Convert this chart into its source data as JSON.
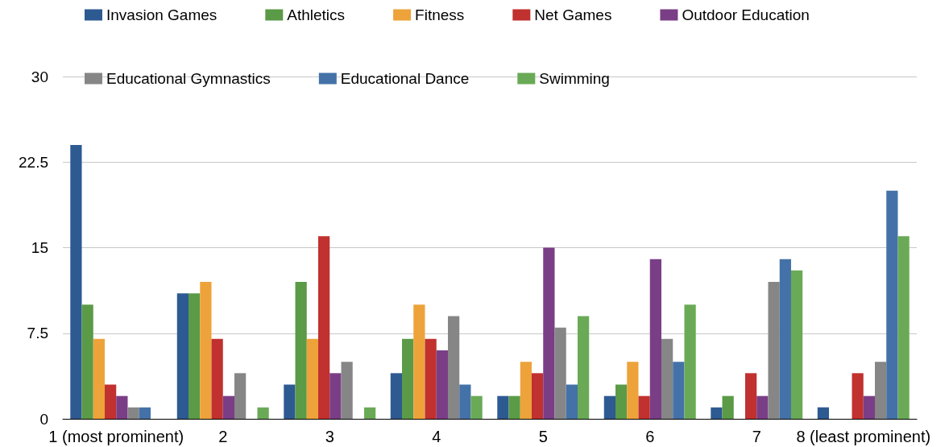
{
  "chart_data": {
    "type": "bar",
    "categories": [
      "1 (most prominent)",
      "2",
      "3",
      "4",
      "5",
      "6",
      "7",
      "8 (least prominent)"
    ],
    "series": [
      {
        "name": "Invasion Games",
        "color": "#2e5a92",
        "values": [
          24,
          11,
          3,
          4,
          2,
          2,
          1,
          1
        ]
      },
      {
        "name": "Athletics",
        "color": "#5b9a47",
        "values": [
          10,
          11,
          12,
          7,
          2,
          3,
          2,
          0
        ]
      },
      {
        "name": "Fitness",
        "color": "#eda33a",
        "values": [
          7,
          12,
          7,
          10,
          5,
          5,
          0,
          0
        ]
      },
      {
        "name": "Net Games",
        "color": "#c0312f",
        "values": [
          3,
          7,
          16,
          7,
          4,
          2,
          4,
          4
        ]
      },
      {
        "name": "Outdoor Education",
        "color": "#7a3e86",
        "values": [
          2,
          2,
          4,
          6,
          15,
          14,
          2,
          2
        ]
      },
      {
        "name": "Educational Gymnastics",
        "color": "#868686",
        "values": [
          1,
          4,
          5,
          9,
          8,
          7,
          12,
          5
        ]
      },
      {
        "name": "Educational Dance",
        "color": "#4472a8",
        "values": [
          1,
          0,
          0,
          3,
          3,
          5,
          14,
          20
        ]
      },
      {
        "name": "Swimming",
        "color": "#6aaa56",
        "values": [
          0,
          1,
          1,
          2,
          9,
          10,
          13,
          16
        ]
      }
    ],
    "ylim": [
      0,
      30
    ],
    "yticks": [
      0,
      7.5,
      15,
      22.5,
      30
    ],
    "grid": "y",
    "legend": "top"
  }
}
